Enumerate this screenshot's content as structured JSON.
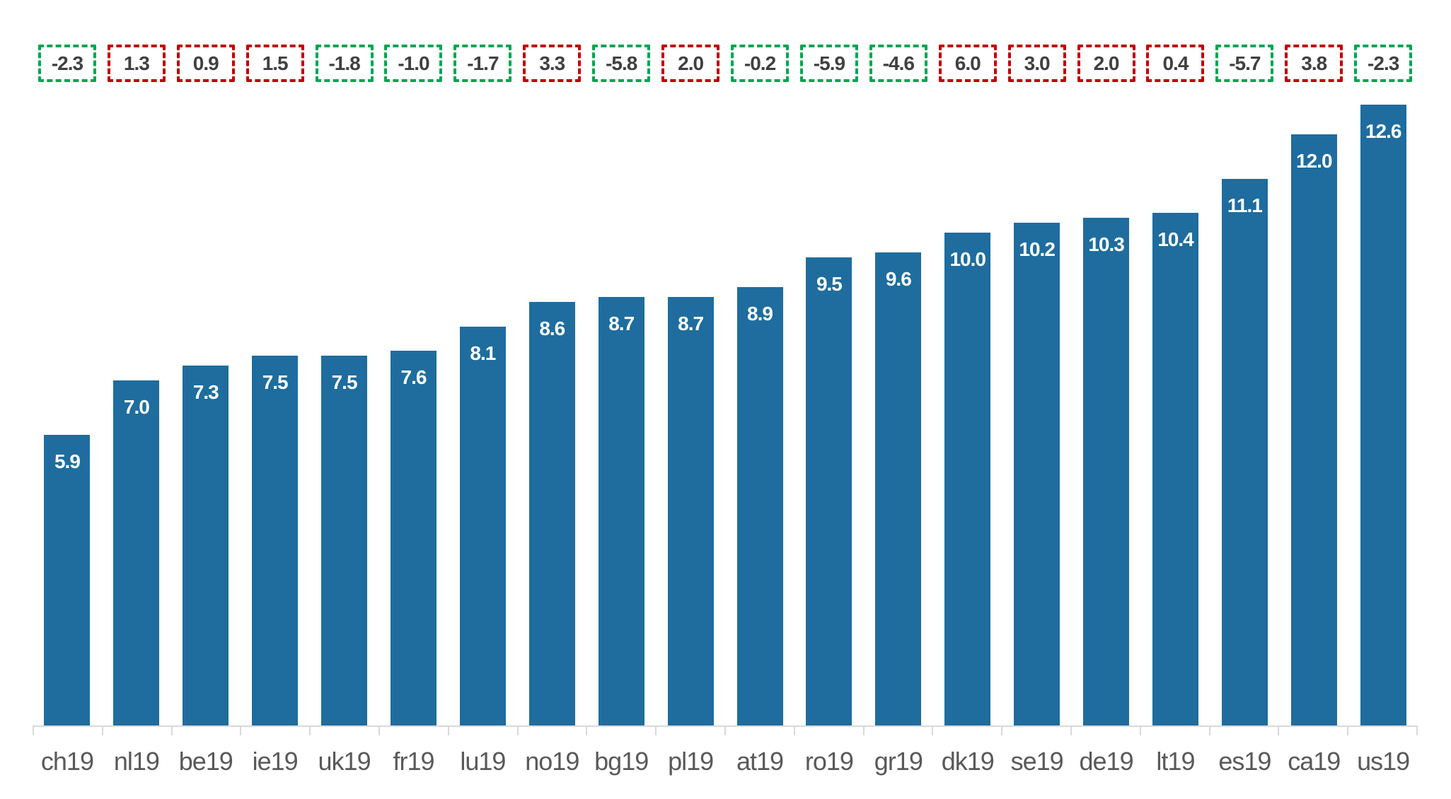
{
  "chart_data": {
    "type": "bar",
    "title": "",
    "xlabel": "",
    "ylabel": "",
    "grid": false,
    "legend": false,
    "ylim": [
      0,
      12.6
    ],
    "categories": [
      "ch19",
      "nl19",
      "be19",
      "ie19",
      "uk19",
      "fr19",
      "lu19",
      "no19",
      "bg19",
      "pl19",
      "at19",
      "ro19",
      "gr19",
      "dk19",
      "se19",
      "de19",
      "lt19",
      "es19",
      "ca19",
      "us19"
    ],
    "values": [
      5.9,
      7.0,
      7.3,
      7.5,
      7.5,
      7.6,
      8.1,
      8.6,
      8.7,
      8.7,
      8.9,
      9.5,
      9.6,
      10.0,
      10.2,
      10.3,
      10.4,
      11.1,
      12.0,
      12.6
    ],
    "value_labels": [
      "5.9",
      "7.0",
      "7.3",
      "7.5",
      "7.5",
      "7.6",
      "8.1",
      "8.6",
      "8.7",
      "8.7",
      "8.9",
      "9.5",
      "9.6",
      "10.0",
      "10.2",
      "10.3",
      "10.4",
      "11.1",
      "12.0",
      "12.6"
    ],
    "bar_color": "#1E6D9E",
    "bar_label_color": "#FFFFFF",
    "change_boxes": {
      "values": [
        -2.3,
        1.3,
        0.9,
        1.5,
        -1.8,
        -1.0,
        -1.7,
        3.3,
        -5.8,
        2.0,
        -0.2,
        -5.9,
        -4.6,
        6.0,
        3.0,
        2.0,
        0.4,
        -5.7,
        3.8,
        -2.3
      ],
      "labels": [
        "-2.3",
        "1.3",
        "0.9",
        "1.5",
        "-1.8",
        "-1.0",
        "-1.7",
        "3.3",
        "-5.8",
        "2.0",
        "-0.2",
        "-5.9",
        "-4.6",
        "6.0",
        "3.0",
        "2.0",
        "0.4",
        "-5.7",
        "3.8",
        "-2.3"
      ],
      "negative_color": "#00A651",
      "positive_color": "#C00000",
      "text_color": "#404040"
    },
    "axis": {
      "line_color": "#D9D9D9",
      "tick_label_color": "#595959"
    }
  }
}
